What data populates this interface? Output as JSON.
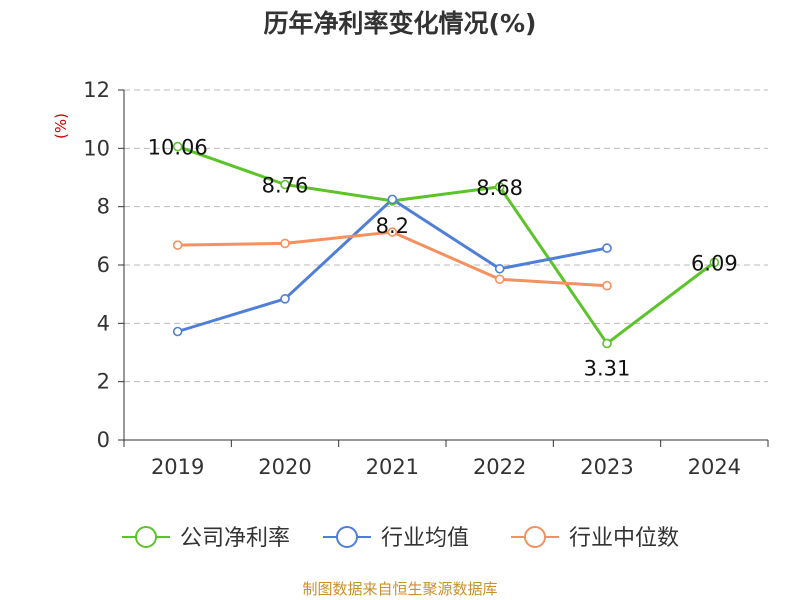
{
  "title": "历年净利率变化情况(%)",
  "source_note": "制图数据来自恒生聚源数据库",
  "chart_data": {
    "type": "line",
    "title": "历年净利率变化情况(%)",
    "ylabel": "(%)",
    "xlabel": "",
    "categories": [
      "2019",
      "2020",
      "2021",
      "2022",
      "2023",
      "2024"
    ],
    "ylim": [
      0,
      12
    ],
    "yticks": [
      0,
      2,
      4,
      6,
      8,
      10,
      12
    ],
    "grid": true,
    "legend": "bottom",
    "series": [
      {
        "name": "公司净利率",
        "color": "#5cc32b",
        "values": [
          10.06,
          8.76,
          8.2,
          8.68,
          3.31,
          6.09
        ],
        "labels": [
          "10.06",
          "8.76",
          "8.2",
          "8.68",
          "3.31",
          "6.09"
        ]
      },
      {
        "name": "行业均值",
        "color": "#4f7fd6",
        "values": [
          3.72,
          4.84,
          8.25,
          5.87,
          6.58,
          null
        ]
      },
      {
        "name": "行业中位数",
        "color": "#f5905f",
        "values": [
          6.68,
          6.74,
          7.13,
          5.51,
          5.29,
          null
        ]
      }
    ]
  }
}
